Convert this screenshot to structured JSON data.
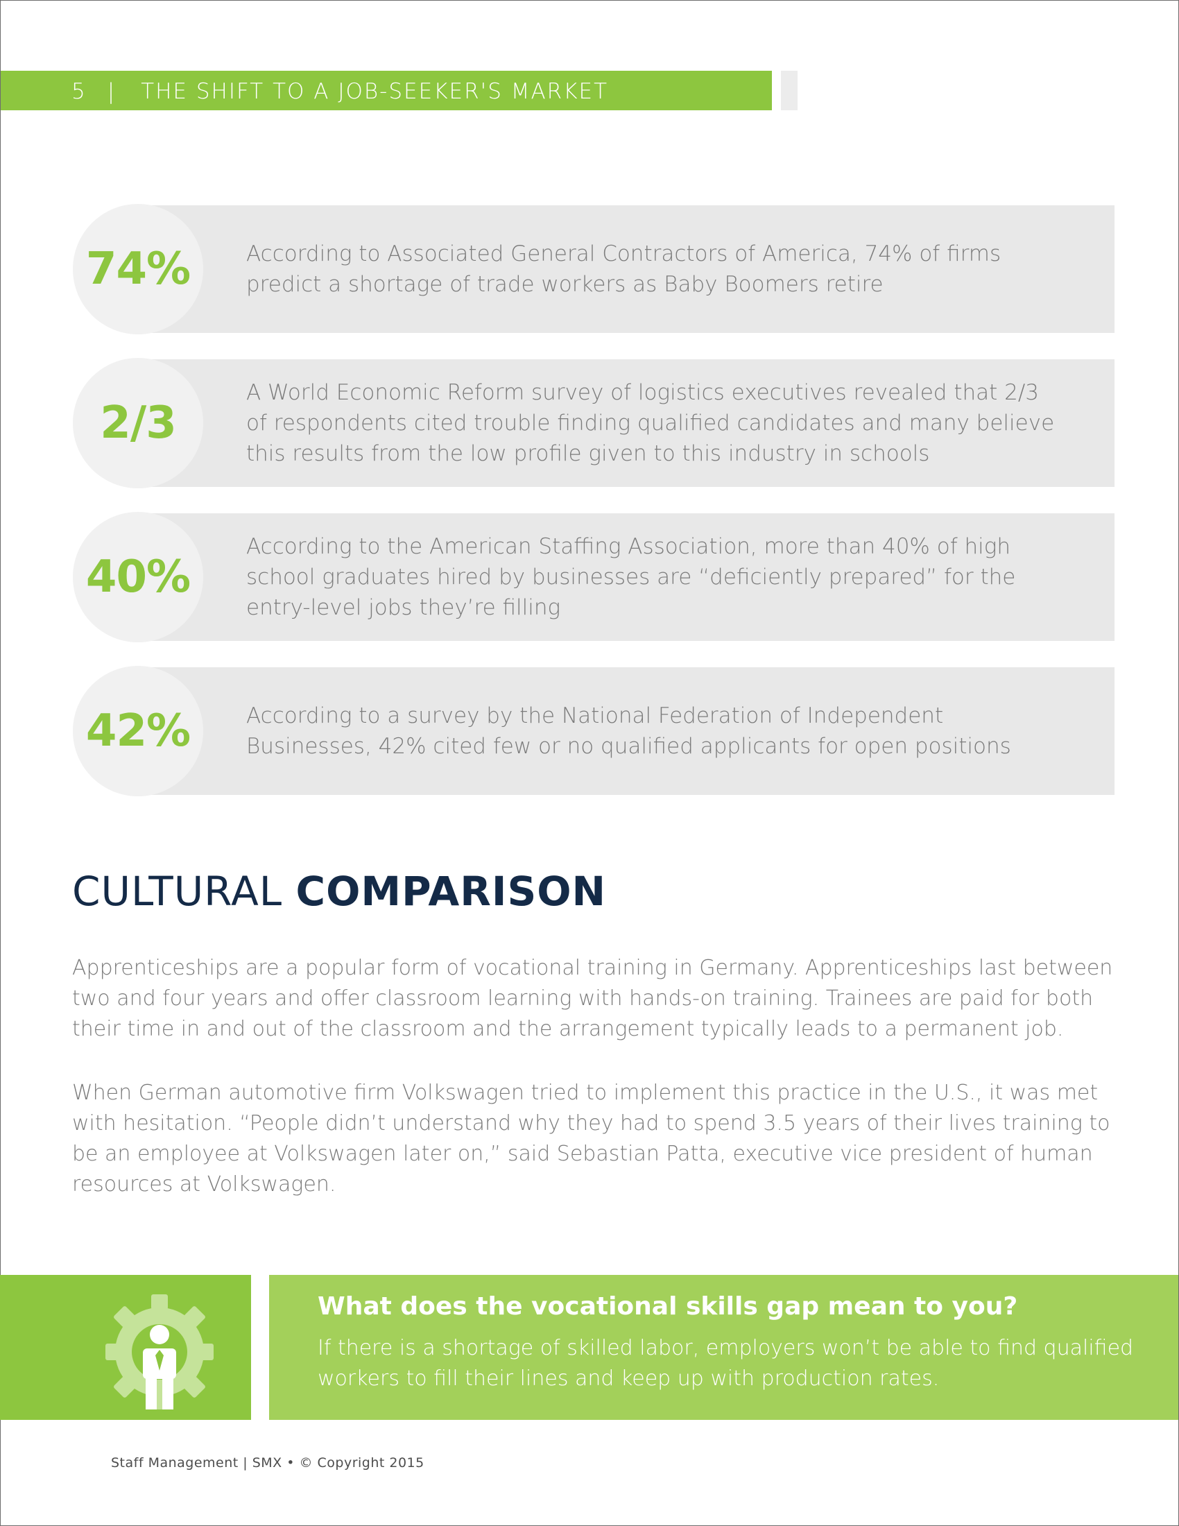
{
  "header": {
    "page_number": "5",
    "separator": "|",
    "title": "THE SHIFT TO A JOB-SEEKER'S MARKET"
  },
  "stats": [
    {
      "value": "74%",
      "lines": [
        "According to Associated General Contractors of America, 74% of firms",
        "predict a shortage of trade workers as Baby Boomers retire"
      ]
    },
    {
      "value": "2/3",
      "lines": [
        "A World Economic Reform survey of logistics executives revealed that 2/3",
        "of respondents cited trouble finding qualified candidates and many believe",
        "this results from the low profile given to this industry in schools"
      ]
    },
    {
      "value": "40%",
      "lines": [
        "According to the American Staffing Association, more than 40% of high",
        "school graduates hired by businesses are “deficiently prepared” for the",
        "entry-level jobs they’re filling"
      ]
    },
    {
      "value": "42%",
      "lines": [
        "According to a survey by the National Federation of Independent",
        "Businesses, 42% cited few or no qualified applicants for open positions"
      ]
    }
  ],
  "section": {
    "title_light": "CULTURAL ",
    "title_bold": "COMPARISON",
    "paragraph1": "Apprenticeships are a popular form of vocational training in Germany. Apprenticeships last between two and four years and offer classroom learning with hands-on training. Trainees are paid for both their time in and out of the classroom and the arrangement typically leads to a permanent job.",
    "paragraph2": "When German automotive firm Volkswagen tried to implement this practice in the U.S., it was met with hesitation. “People didn’t understand why they had to spend 3.5 years of their lives training to be an employee at Volkswagen later on,” said Sebastian Patta, executive vice president of human resources at Volkswagen."
  },
  "callout": {
    "icon": "gear-person-icon",
    "title": "What does the vocational skills gap mean to you?",
    "body": "If there is a shortage of skilled labor, employers won’t be able to find qualified workers to fill their lines and keep up with production rates."
  },
  "footer": {
    "text": "Staff Management | SMX • © Copyright 2015"
  },
  "colors": {
    "accent_green": "#8dc63f",
    "callout_green": "#a3d05a",
    "title_navy": "#142a47",
    "body_gray": "#7b7b7b",
    "panel_gray": "#e8e8e8"
  }
}
